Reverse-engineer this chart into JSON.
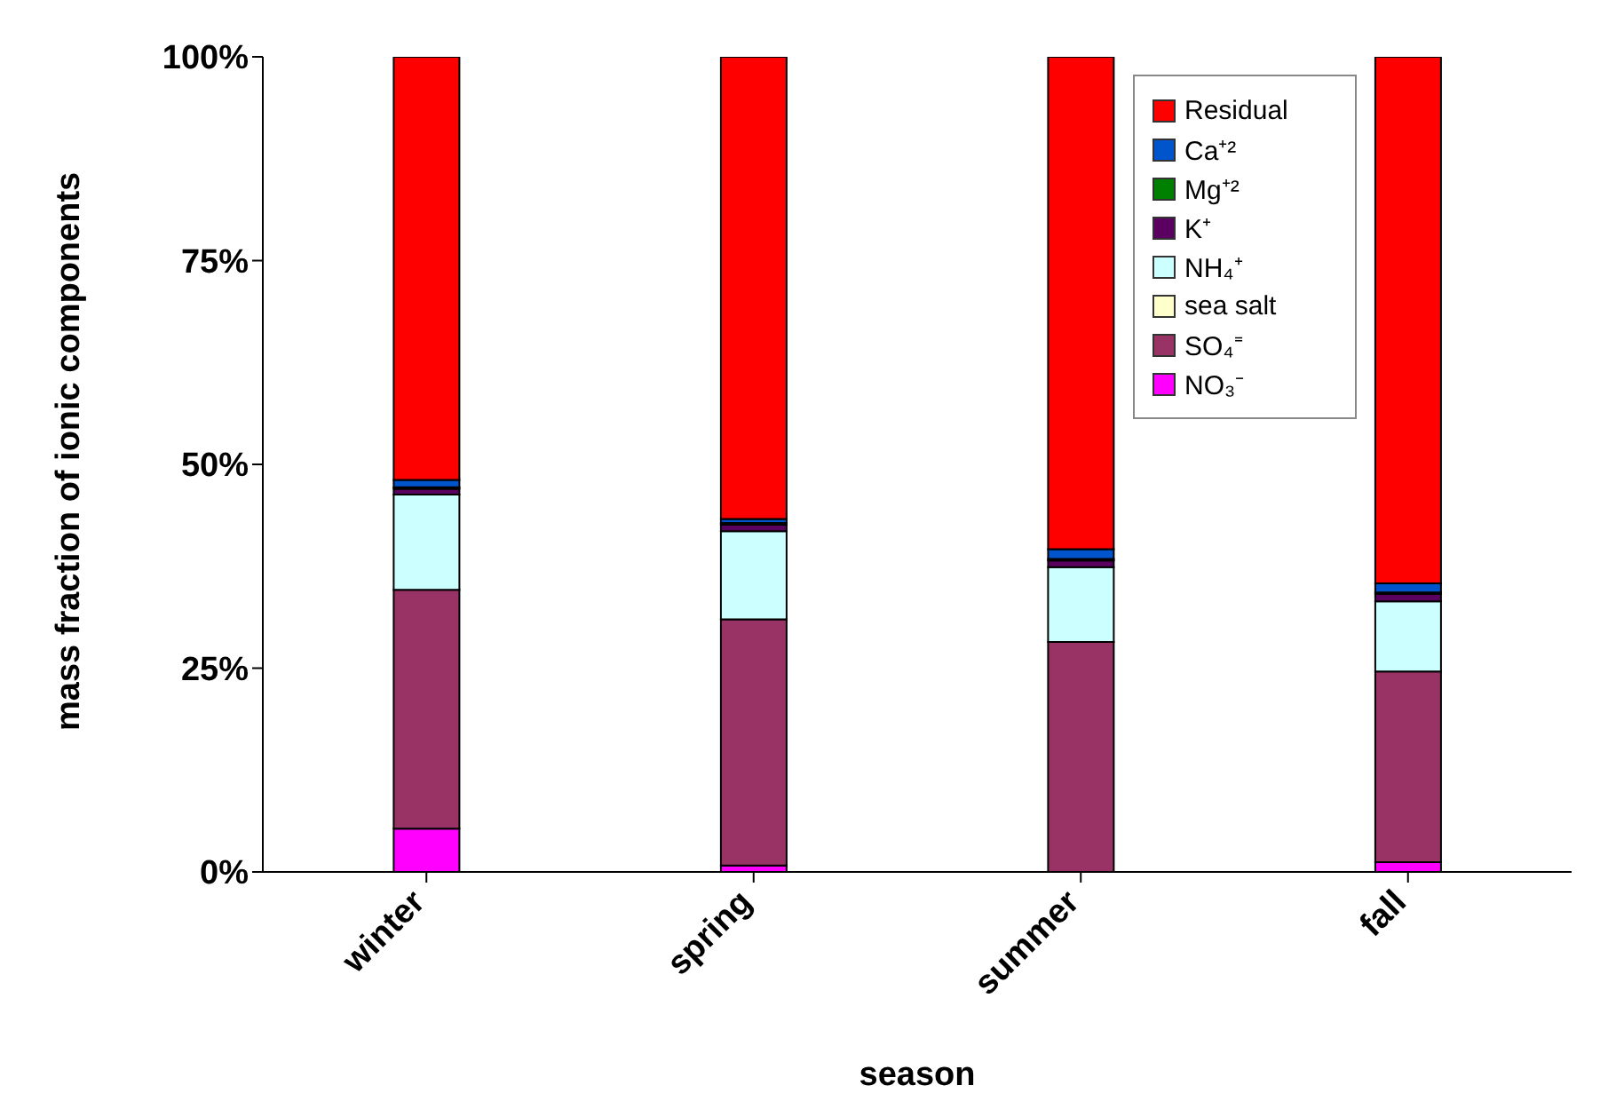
{
  "chart_data": {
    "type": "bar",
    "stacked": true,
    "xlabel": "season",
    "ylabel": "mass fraction of ionic components",
    "categories": [
      "winter",
      "spring",
      "summer",
      "fall"
    ],
    "series": [
      {
        "name": "NO₃⁻",
        "color": "#ff00ff",
        "values": [
          5.3,
          0.8,
          null,
          1.2
        ]
      },
      {
        "name": "SO₄⁼",
        "color": "#993366",
        "values": [
          29.3,
          30.2,
          28.2,
          23.4
        ]
      },
      {
        "name": "sea salt",
        "color": "#ffffcc",
        "values": [
          null,
          null,
          null,
          null
        ]
      },
      {
        "name": "NH₄⁺",
        "color": "#ccffff",
        "values": [
          11.7,
          10.8,
          9.2,
          8.6
        ]
      },
      {
        "name": "K⁺",
        "color": "#5a0060",
        "values": [
          0.7,
          0.8,
          0.8,
          0.9
        ]
      },
      {
        "name": "Mg⁺²",
        "color": "#008000",
        "values": [
          0.2,
          0.2,
          0.2,
          0.2
        ]
      },
      {
        "name": "Ca⁺²",
        "color": "#0055cc",
        "values": [
          0.9,
          0.5,
          1.2,
          1.1
        ]
      },
      {
        "name": "Residual",
        "color": "#ff0000",
        "values": [
          51.9,
          56.7,
          60.4,
          64.6
        ]
      }
    ],
    "ylim": [
      0,
      100
    ],
    "yticks": [
      {
        "value": 0,
        "label": "0%"
      },
      {
        "value": 25,
        "label": "25%"
      },
      {
        "value": 50,
        "label": "50%"
      },
      {
        "value": 75,
        "label": "75%"
      },
      {
        "value": 100,
        "label": "100%"
      }
    ],
    "grid": false,
    "legend": "top right"
  }
}
